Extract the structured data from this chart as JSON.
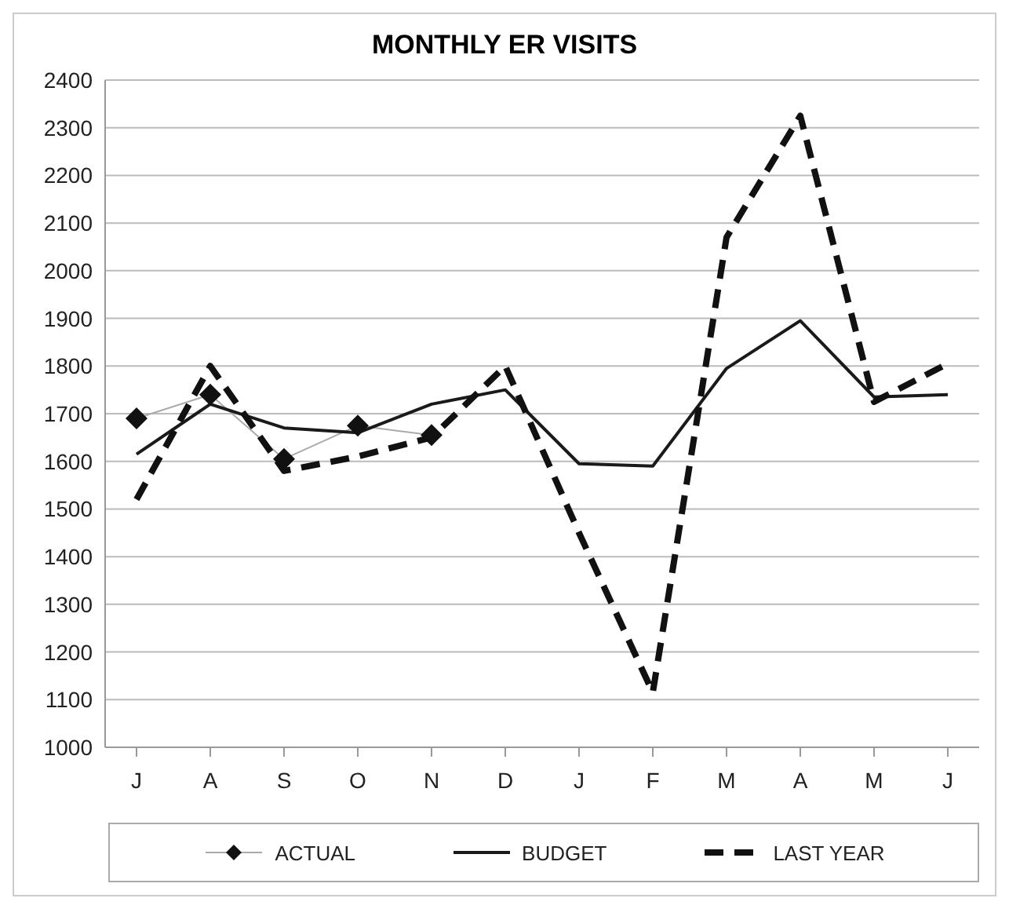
{
  "chart_data": {
    "type": "line",
    "title": "MONTHLY ER VISITS",
    "categories": [
      "J",
      "A",
      "S",
      "O",
      "N",
      "D",
      "J",
      "F",
      "M",
      "A",
      "M",
      "J"
    ],
    "series": [
      {
        "name": "ACTUAL",
        "color": "#111111",
        "marker": "diamond",
        "line_style": "solid",
        "values": [
          1690,
          1740,
          1605,
          1675,
          1655,
          null,
          null,
          null,
          null,
          null,
          null,
          null
        ]
      },
      {
        "name": "BUDGET",
        "color": "#1a1a1a",
        "marker": "none",
        "line_style": "solid",
        "values": [
          1615,
          1720,
          1670,
          1660,
          1720,
          1750,
          1595,
          1590,
          1795,
          1895,
          1735,
          1740
        ]
      },
      {
        "name": "LAST YEAR",
        "color": "#111111",
        "marker": "none",
        "line_style": "dashed",
        "values": [
          1520,
          1800,
          1580,
          1610,
          1650,
          1800,
          1450,
          1115,
          2070,
          2325,
          1725,
          1805
        ]
      }
    ],
    "ylim": [
      1000,
      2400
    ],
    "yticks": [
      1000,
      1100,
      1200,
      1300,
      1400,
      1500,
      1600,
      1700,
      1800,
      1900,
      2000,
      2100,
      2200,
      2300,
      2400
    ],
    "grid": "y",
    "legend": "bottom"
  }
}
